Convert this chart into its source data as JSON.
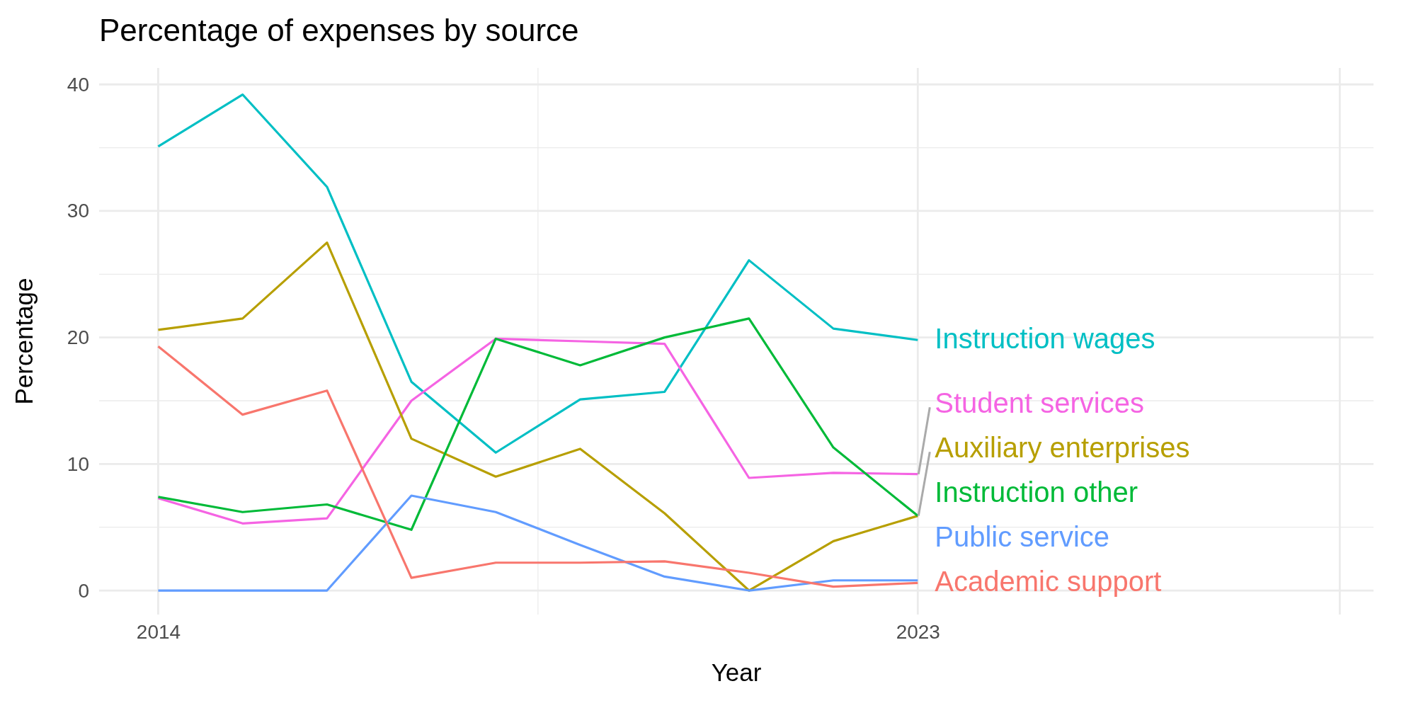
{
  "chart_data": {
    "type": "line",
    "title": "Percentage of expenses by source",
    "xlabel": "Year",
    "ylabel": "Percentage",
    "x": [
      2014,
      2015,
      2016,
      2017,
      2018,
      2019,
      2020,
      2021,
      2022,
      2023
    ],
    "xlim": [
      2013.3,
      2028.4
    ],
    "xticks": [
      2014,
      2023,
      {
        "value": 2028,
        "label": null
      }
    ],
    "ylim": [
      -1.9,
      41.3
    ],
    "yticks": [
      0,
      10,
      20,
      30,
      40
    ],
    "grid": true,
    "line_style": "solid",
    "marker": "none",
    "series": [
      {
        "name": "Instruction wages",
        "color": "#00bfc4",
        "values": [
          35.1,
          39.2,
          31.9,
          16.5,
          10.9,
          15.1,
          15.7,
          26.1,
          20.7,
          19.8
        ]
      },
      {
        "name": "Student services",
        "color": "#f564e3",
        "values": [
          7.3,
          5.3,
          5.7,
          15.0,
          19.9,
          19.7,
          19.5,
          8.9,
          9.3,
          9.2
        ]
      },
      {
        "name": "Auxiliary enterprises",
        "color": "#b79f00",
        "values": [
          20.6,
          21.5,
          27.5,
          12.0,
          9.0,
          11.2,
          6.1,
          0.0,
          3.9,
          5.9
        ]
      },
      {
        "name": "Instruction other",
        "color": "#00ba38",
        "values": [
          7.4,
          6.2,
          6.8,
          4.8,
          19.9,
          17.8,
          20.0,
          21.5,
          11.3,
          5.9
        ]
      },
      {
        "name": "Public service",
        "color": "#619cff",
        "values": [
          0,
          0,
          0,
          7.5,
          6.2,
          3.6,
          1.1,
          0,
          0.8,
          0.8
        ]
      },
      {
        "name": "Academic support",
        "color": "#f8766d",
        "values": [
          19.3,
          13.9,
          15.8,
          1.0,
          2.2,
          2.2,
          2.3,
          1.4,
          0.3,
          0.6
        ]
      }
    ]
  }
}
